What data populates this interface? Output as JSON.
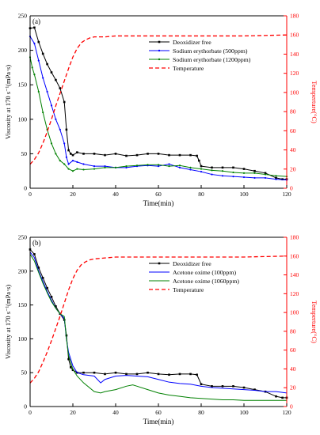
{
  "chart_data": [
    {
      "type": "line",
      "panel_label": "(a)",
      "xlabel": "Time(min)",
      "ylabel_left": "Viscosity at 170 s⁻¹(mPa·s)",
      "ylabel_right": "Temperture(°C)",
      "xlim": [
        0,
        120
      ],
      "ylim_left": [
        0,
        250
      ],
      "ylim_right": [
        0,
        180
      ],
      "xticks": [
        "0",
        "20",
        "40",
        "60",
        "80",
        "100",
        "120"
      ],
      "yticks_left": [
        "0",
        "50",
        "100",
        "150",
        "200",
        "250"
      ],
      "yticks_right": [
        "0",
        "20",
        "40",
        "60",
        "80",
        "100",
        "120",
        "140",
        "160",
        "180"
      ],
      "legend_position": "upper-right",
      "series": [
        {
          "name": "Deoxidizer free",
          "axis": "left",
          "color": "#000000",
          "dash": "solid",
          "marker": "square",
          "x": [
            0,
            2,
            4,
            6,
            8,
            10,
            12,
            14,
            16,
            17,
            18,
            19,
            20,
            22,
            25,
            30,
            35,
            40,
            45,
            50,
            55,
            60,
            65,
            70,
            75,
            78,
            79,
            80,
            85,
            90,
            95,
            100,
            105,
            110,
            115,
            118,
            120
          ],
          "y": [
            232,
            233,
            212,
            195,
            180,
            168,
            157,
            145,
            125,
            85,
            55,
            50,
            48,
            52,
            50,
            50,
            48,
            50,
            47,
            48,
            50,
            50,
            48,
            48,
            48,
            47,
            40,
            32,
            30,
            30,
            30,
            28,
            25,
            22,
            15,
            13,
            13
          ]
        },
        {
          "name": "Sodium erythorbate (500ppm)",
          "axis": "left",
          "color": "#0000ff",
          "dash": "solid",
          "marker": "dot",
          "x": [
            0,
            2,
            4,
            6,
            8,
            10,
            12,
            14,
            16,
            17,
            18,
            20,
            22,
            25,
            30,
            35,
            40,
            45,
            50,
            55,
            60,
            65,
            70,
            75,
            80,
            85,
            90,
            95,
            100,
            105,
            110,
            115,
            120
          ],
          "y": [
            220,
            210,
            185,
            160,
            140,
            120,
            100,
            85,
            65,
            45,
            35,
            40,
            38,
            35,
            32,
            32,
            30,
            30,
            32,
            33,
            32,
            35,
            30,
            27,
            24,
            20,
            18,
            17,
            16,
            15,
            15,
            13,
            12
          ]
        },
        {
          "name": "Sodium erythorbate (1200ppm)",
          "axis": "left",
          "color": "#008000",
          "dash": "solid",
          "marker": "dot",
          "x": [
            0,
            1,
            2,
            4,
            6,
            8,
            10,
            12,
            14,
            16,
            18,
            20,
            22,
            25,
            30,
            35,
            40,
            45,
            50,
            55,
            60,
            65,
            70,
            75,
            80,
            85,
            90,
            95,
            100,
            105,
            110,
            115,
            120
          ],
          "y": [
            190,
            175,
            165,
            140,
            110,
            85,
            65,
            50,
            40,
            35,
            28,
            25,
            28,
            27,
            28,
            30,
            30,
            32,
            33,
            34,
            34,
            32,
            33,
            30,
            28,
            26,
            25,
            23,
            22,
            22,
            20,
            18,
            17
          ]
        },
        {
          "name": "Temperature",
          "axis": "right",
          "color": "#ff0000",
          "dash": "dashed",
          "x": [
            0,
            2,
            4,
            6,
            8,
            10,
            12,
            14,
            16,
            18,
            20,
            22,
            24,
            26,
            28,
            30,
            35,
            40,
            50,
            60,
            80,
            100,
            120
          ],
          "y": [
            25,
            30,
            37,
            47,
            59,
            72,
            86,
            99,
            112,
            125,
            137,
            146,
            152,
            155,
            157,
            158,
            158,
            159,
            159,
            159,
            159,
            159,
            160
          ]
        }
      ]
    },
    {
      "type": "line",
      "panel_label": "(b)",
      "xlabel": "Time(min)",
      "ylabel_left": "Viscosity at 170 s⁻¹(mPa·s)",
      "ylabel_right": "Temperture(°C)",
      "xlim": [
        0,
        120
      ],
      "ylim_left": [
        0,
        250
      ],
      "ylim_right": [
        0,
        180
      ],
      "xticks": [
        "0",
        "20",
        "40",
        "60",
        "80",
        "100",
        "120"
      ],
      "yticks_left": [
        "0",
        "50",
        "100",
        "150",
        "200",
        "250"
      ],
      "yticks_right": [
        "0",
        "20",
        "40",
        "60",
        "80",
        "100",
        "120",
        "140",
        "160",
        "180"
      ],
      "legend_position": "upper-right",
      "series": [
        {
          "name": "Deoxidizer free",
          "axis": "left",
          "color": "#000000",
          "dash": "solid",
          "marker": "square",
          "x": [
            0,
            2,
            4,
            6,
            8,
            10,
            12,
            14,
            16,
            17,
            18,
            19,
            20,
            22,
            25,
            30,
            35,
            40,
            45,
            50,
            55,
            60,
            65,
            70,
            75,
            78,
            80,
            85,
            90,
            95,
            100,
            105,
            110,
            115,
            118,
            120
          ],
          "y": [
            232,
            225,
            205,
            190,
            175,
            162,
            148,
            137,
            128,
            105,
            70,
            58,
            54,
            50,
            50,
            50,
            48,
            50,
            48,
            48,
            50,
            48,
            47,
            48,
            48,
            47,
            33,
            30,
            30,
            30,
            28,
            25,
            22,
            15,
            13,
            13
          ]
        },
        {
          "name": "Acetone oxime (100ppm)",
          "axis": "left",
          "color": "#0000ff",
          "dash": "solid",
          "x": [
            0,
            2,
            4,
            6,
            8,
            10,
            12,
            14,
            16,
            17,
            18,
            20,
            22,
            25,
            30,
            33,
            35,
            40,
            45,
            50,
            55,
            60,
            65,
            70,
            75,
            80,
            85,
            90,
            95,
            100,
            105,
            110,
            115,
            120
          ],
          "y": [
            228,
            220,
            200,
            185,
            170,
            157,
            145,
            137,
            130,
            100,
            80,
            60,
            50,
            47,
            45,
            35,
            40,
            45,
            46,
            45,
            44,
            40,
            36,
            34,
            33,
            30,
            28,
            27,
            26,
            25,
            24,
            22,
            22,
            20
          ]
        },
        {
          "name": "Acetone oxime (1060ppm)",
          "axis": "left",
          "color": "#008000",
          "dash": "solid",
          "x": [
            0,
            2,
            4,
            6,
            8,
            10,
            12,
            14,
            16,
            17,
            18,
            20,
            22,
            25,
            30,
            33,
            35,
            40,
            45,
            48,
            50,
            55,
            60,
            65,
            70,
            75,
            80,
            85,
            90,
            95,
            100,
            105,
            110,
            115,
            120
          ],
          "y": [
            225,
            215,
            198,
            182,
            168,
            155,
            145,
            137,
            133,
            100,
            75,
            55,
            45,
            35,
            22,
            20,
            22,
            25,
            30,
            32,
            30,
            25,
            20,
            17,
            15,
            13,
            12,
            11,
            10,
            10,
            9,
            9,
            9,
            9,
            9
          ]
        },
        {
          "name": "Temperature",
          "axis": "right",
          "color": "#ff0000",
          "dash": "dashed",
          "x": [
            0,
            2,
            4,
            6,
            8,
            10,
            12,
            14,
            16,
            18,
            20,
            22,
            24,
            26,
            28,
            30,
            35,
            40,
            50,
            60,
            80,
            100,
            120
          ],
          "y": [
            25,
            30,
            37,
            47,
            58,
            70,
            83,
            96,
            110,
            124,
            136,
            145,
            151,
            154,
            156,
            157,
            158,
            159,
            159,
            159,
            159,
            159,
            160
          ]
        }
      ]
    }
  ]
}
